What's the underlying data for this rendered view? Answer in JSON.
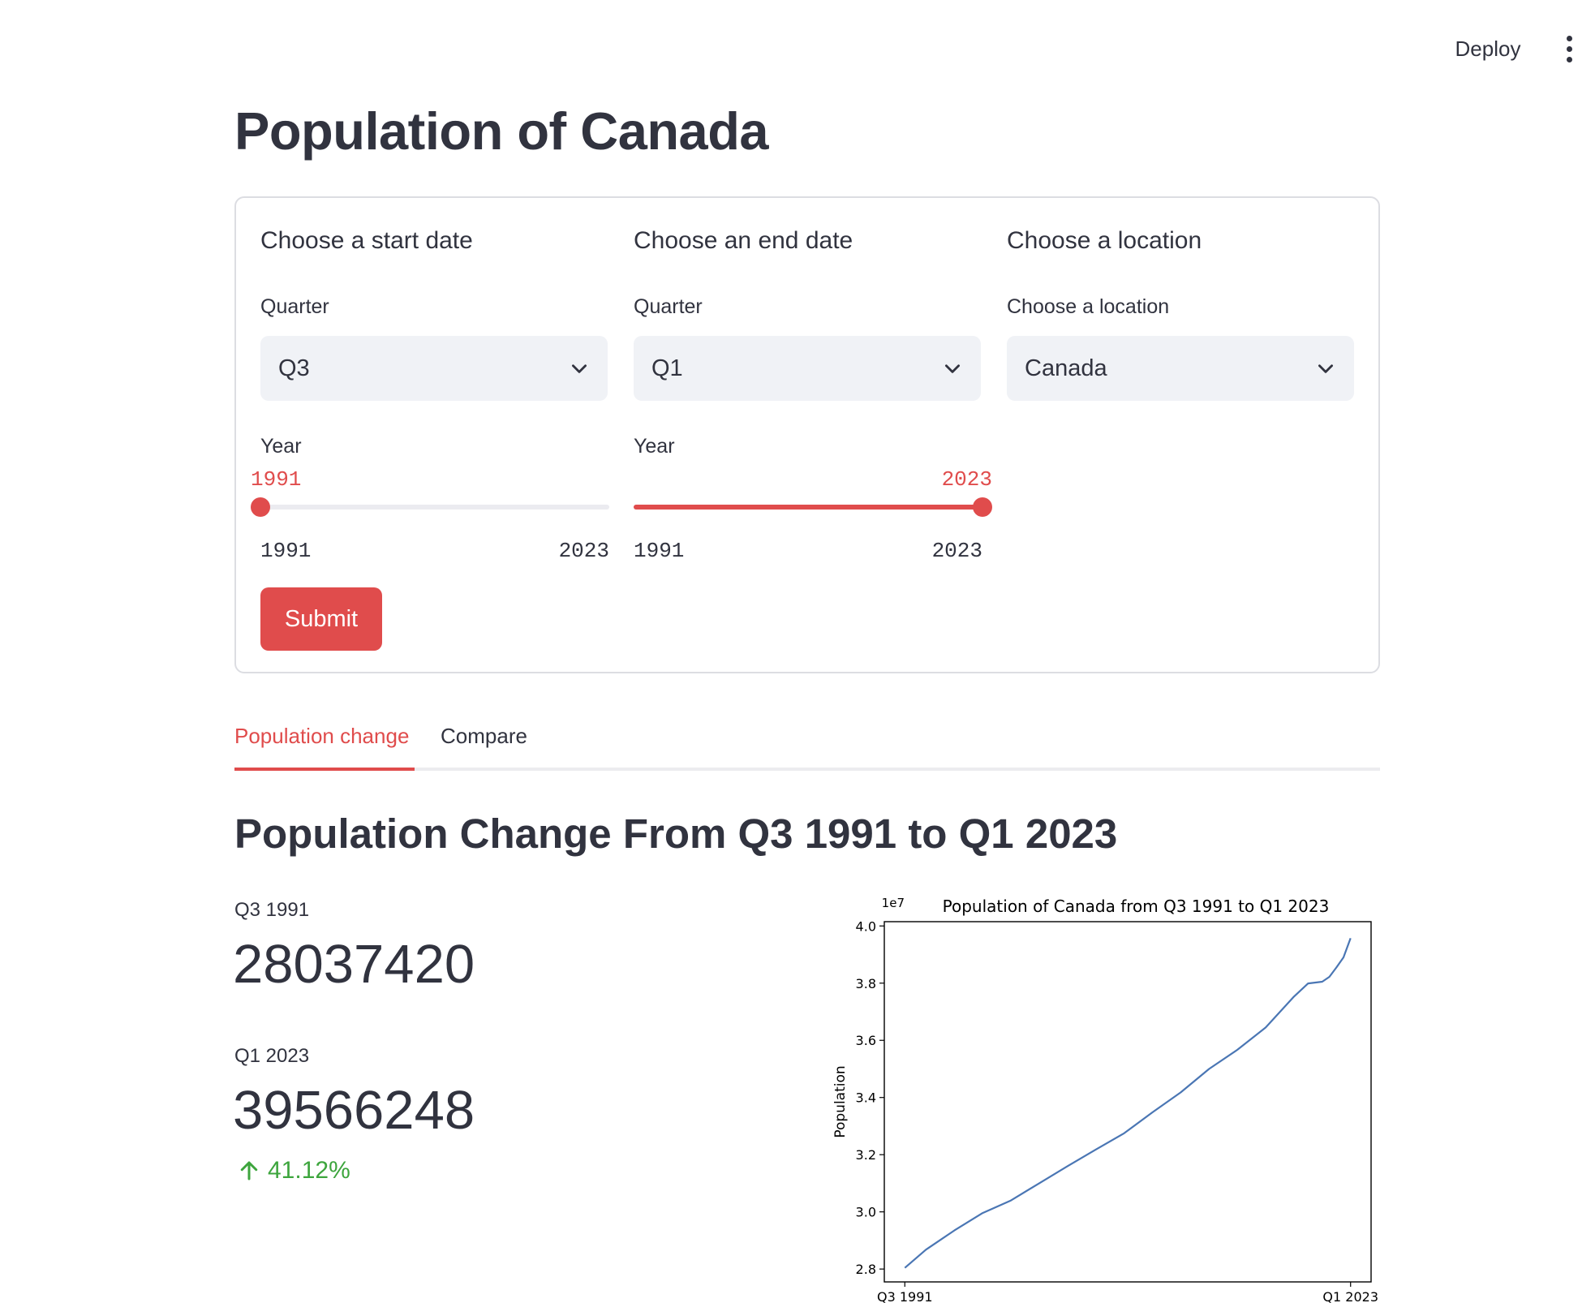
{
  "header": {
    "deploy_label": "Deploy",
    "menu_icon": "more-vertical-icon"
  },
  "page": {
    "title": "Population of Canada"
  },
  "form": {
    "start": {
      "heading": "Choose a start date",
      "quarter_label": "Quarter",
      "quarter_value": "Q3",
      "year_label": "Year",
      "slider": {
        "value": "1991",
        "min": "1991",
        "max": "2023",
        "fraction": 0.0
      }
    },
    "end": {
      "heading": "Choose an end date",
      "quarter_label": "Quarter",
      "quarter_value": "Q1",
      "year_label": "Year",
      "slider": {
        "value": "2023",
        "min": "1991",
        "max": "2023",
        "fraction": 1.0
      }
    },
    "location": {
      "heading": "Choose a location",
      "label": "Choose a location",
      "value": "Canada"
    },
    "submit_label": "Submit"
  },
  "tabs": [
    {
      "label": "Population change",
      "active": true
    },
    {
      "label": "Compare",
      "active": false
    }
  ],
  "section_title": "Population Change From Q3 1991 to Q1 2023",
  "metrics": {
    "start_label": "Q3 1991",
    "start_value": "28037420",
    "end_label": "Q1 2023",
    "end_value": "39566248",
    "delta": "41.12%",
    "delta_icon": "arrow-up-icon"
  },
  "colors": {
    "accent": "#e04c4c",
    "delta_positive": "#3da53d",
    "line": "#4a76b4",
    "select_bg": "#f0f2f6",
    "text": "#31333f"
  },
  "chart_data": {
    "type": "line",
    "title": "Population of Canada from Q3 1991 to Q1 2023",
    "xlabel": "",
    "ylabel": "Population",
    "y_multiplier_label": "1e7",
    "ylim": [
      2.755,
      4.015
    ],
    "yticks": [
      2.8,
      3.0,
      3.2,
      3.4,
      3.6,
      3.8,
      4.0
    ],
    "x_tick_labels": [
      "Q3 1991",
      "Q1 2023"
    ],
    "grid": false,
    "series": [
      {
        "x": [
          1991.5,
          1993,
          1995,
          1997,
          1999,
          2001,
          2003,
          2005,
          2007,
          2009,
          2011,
          2013,
          2015,
          2017,
          2019,
          2020,
          2021,
          2021.5,
          2022,
          2022.5,
          2023
        ],
        "y": [
          2.804,
          2.868,
          2.935,
          2.996,
          3.04,
          3.1,
          3.16,
          3.218,
          3.275,
          3.348,
          3.418,
          3.5,
          3.567,
          3.645,
          3.753,
          3.799,
          3.805,
          3.822,
          3.855,
          3.89,
          3.957
        ]
      }
    ]
  }
}
